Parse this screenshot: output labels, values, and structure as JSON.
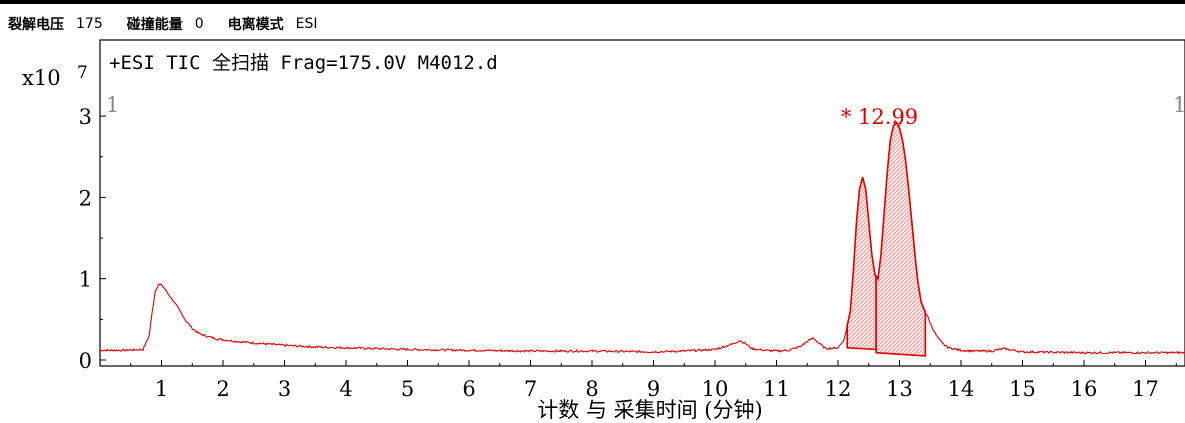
{
  "params": {
    "voltage_label": "裂解电压",
    "voltage_value": "175",
    "collision_label": "碰撞能量",
    "collision_value": "0",
    "ion_mode_label": "电离模式",
    "ion_mode_value": "ESI"
  },
  "chart_data": {
    "type": "line",
    "title": "+ESI TIC 全扫描 Frag=175.0V M4012.d",
    "xlabel": "计数 与 采集时间 (分钟)",
    "y_multiplier": "x10",
    "y_exponent": "7",
    "xlim": [
      0,
      17.7
    ],
    "ylim": [
      0,
      3.3
    ],
    "x_ticks": [
      "1",
      "2",
      "3",
      "4",
      "5",
      "6",
      "7",
      "8",
      "9",
      "10",
      "11",
      "12",
      "13",
      "14",
      "15",
      "16",
      "17"
    ],
    "y_ticks": [
      "0",
      "1",
      "2",
      "3"
    ],
    "corner_left": "1",
    "corner_right": "1",
    "peak_label": "* 12.99",
    "series_color": "#e00000",
    "series": [
      {
        "x": [
          0,
          0.4,
          0.7,
          0.8,
          0.85,
          0.9,
          0.95,
          1.0,
          1.05,
          1.1,
          1.2,
          1.3,
          1.4,
          1.5,
          1.6,
          1.7,
          1.8,
          1.9,
          2.0,
          2.2,
          2.5,
          3.0,
          3.5,
          4.0,
          5.0,
          6.0,
          7.0,
          8.0,
          9.0,
          9.5,
          10.0,
          10.3,
          10.4,
          10.5,
          10.6,
          10.8,
          11.0,
          11.2,
          11.4,
          11.5,
          11.6,
          11.7,
          11.8,
          12.0,
          12.1,
          12.2,
          12.25,
          12.3,
          12.35,
          12.4,
          12.45,
          12.5,
          12.55,
          12.6,
          12.65,
          12.7,
          12.75,
          12.8,
          12.85,
          12.9,
          12.95,
          13.0,
          13.05,
          13.1,
          13.15,
          13.2,
          13.25,
          13.3,
          13.35,
          13.4,
          13.45,
          13.5,
          13.6,
          13.7,
          13.8,
          14.0,
          14.2,
          14.5,
          14.7,
          15.0,
          16.0,
          17.0,
          17.7
        ],
        "y": [
          0.12,
          0.12,
          0.13,
          0.3,
          0.6,
          0.85,
          0.93,
          0.92,
          0.88,
          0.82,
          0.72,
          0.6,
          0.48,
          0.39,
          0.33,
          0.3,
          0.28,
          0.26,
          0.25,
          0.23,
          0.21,
          0.18,
          0.16,
          0.15,
          0.13,
          0.12,
          0.11,
          0.11,
          0.1,
          0.11,
          0.13,
          0.2,
          0.24,
          0.2,
          0.14,
          0.12,
          0.11,
          0.12,
          0.17,
          0.23,
          0.27,
          0.2,
          0.14,
          0.15,
          0.25,
          0.6,
          1.1,
          1.7,
          2.1,
          2.25,
          2.1,
          1.7,
          1.3,
          1.05,
          1.0,
          1.3,
          1.8,
          2.3,
          2.7,
          2.88,
          2.92,
          2.85,
          2.7,
          2.45,
          2.1,
          1.7,
          1.3,
          0.95,
          0.72,
          0.62,
          0.55,
          0.45,
          0.3,
          0.2,
          0.15,
          0.12,
          0.11,
          0.11,
          0.14,
          0.1,
          0.09,
          0.09,
          0.09
        ]
      }
    ],
    "integrated_regions": [
      {
        "x_start": 12.15,
        "x_end": 12.62,
        "baseline_start": 0.15,
        "baseline_end": 0.13
      },
      {
        "x_start": 12.62,
        "x_end": 13.42,
        "baseline_start": 0.09,
        "baseline_end": 0.05
      }
    ]
  }
}
